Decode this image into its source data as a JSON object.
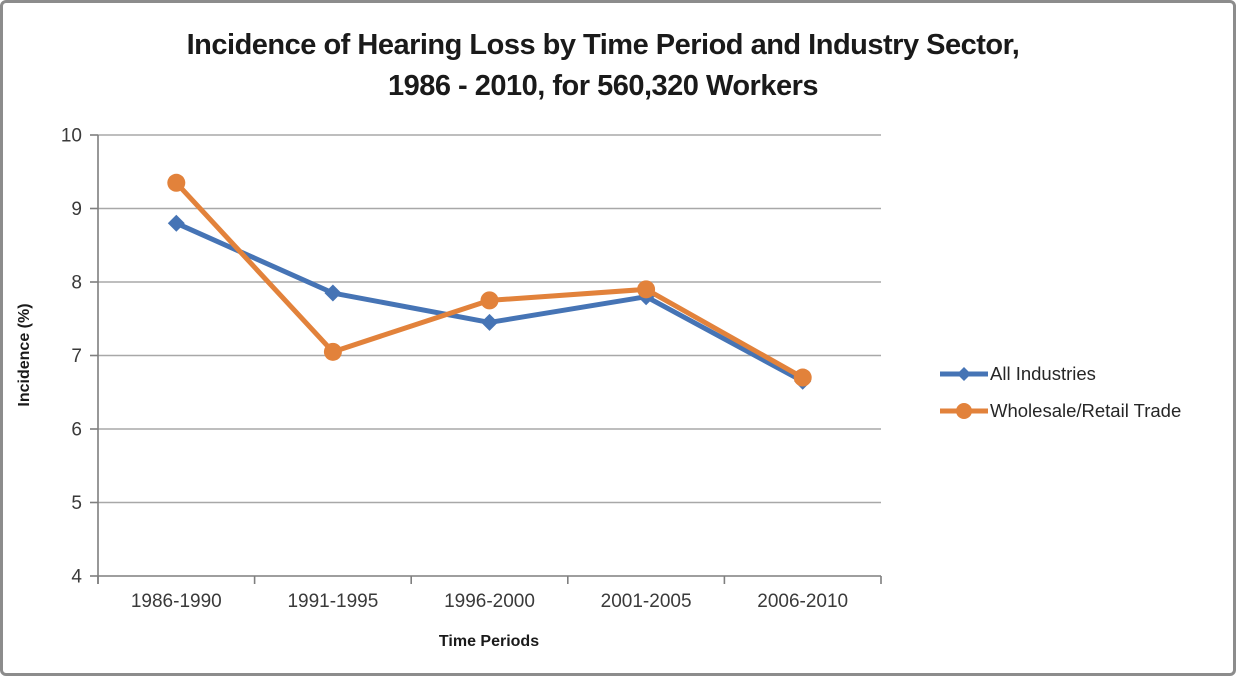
{
  "title": {
    "line1": "Incidence of Hearing Loss by Time Period and Industry Sector,",
    "line2": "1986 - 2010, for 560,320 Workers"
  },
  "chart_data": {
    "type": "line",
    "title": "Incidence of Hearing Loss by Time Period and Industry Sector, 1986 - 2010, for 560,320 Workers",
    "categories": [
      "1986-1990",
      "1991-1995",
      "1996-2000",
      "2001-2005",
      "2006-2010"
    ],
    "series": [
      {
        "name": "All Industries",
        "marker": "diamond",
        "color": "#4674B5",
        "values": [
          8.8,
          7.85,
          7.45,
          7.8,
          6.65
        ]
      },
      {
        "name": "Wholesale/Retail Trade",
        "marker": "circle",
        "color": "#E2823B",
        "values": [
          9.35,
          7.05,
          7.75,
          7.9,
          6.7
        ]
      }
    ],
    "xlabel": "Time Periods",
    "ylabel": "Incidence (%)",
    "ylim": [
      4,
      10
    ],
    "yticks": [
      4,
      5,
      6,
      7,
      8,
      9,
      10
    ],
    "grid": true,
    "legend_position": "right"
  },
  "colors": {
    "background": "#FFFFFF",
    "frame_border": "#8C8C8C",
    "gridline": "#A8A8A8",
    "axis": "#7F7F7F",
    "tick_text": "#3A3A3A",
    "title_text": "#1A1A1A",
    "legend_text": "#262626"
  }
}
